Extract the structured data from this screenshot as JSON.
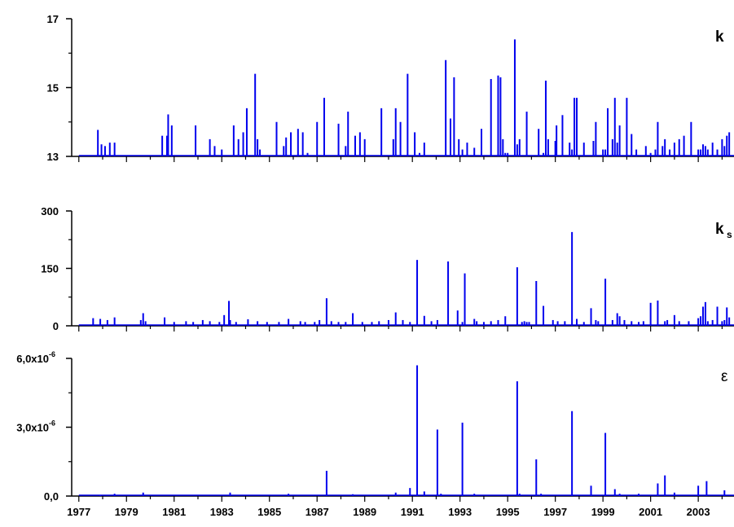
{
  "colors": {
    "series": "#0000ee",
    "axis": "#000000"
  },
  "chart_data": [
    {
      "type": "line",
      "panel_label": "k",
      "ylim": [
        13,
        17
      ],
      "yticks": [
        13,
        15,
        17
      ],
      "ytick_labels": [
        "13",
        "15",
        "17"
      ],
      "xlim": [
        1976.7,
        2004.5
      ],
      "grid": false,
      "series": [
        {
          "x": [
            1977.8,
            1977.95,
            1978.1,
            1978.3,
            1978.5,
            1980.5,
            1980.7,
            1980.75,
            1980.9,
            1981.9,
            1982.5,
            1982.7,
            1983.0,
            1983.5,
            1983.7,
            1983.9,
            1984.05,
            1984.4,
            1984.5,
            1984.6,
            1985.3,
            1985.6,
            1985.7,
            1985.9,
            1986.2,
            1986.4,
            1986.6,
            1987.0,
            1987.3,
            1987.9,
            1988.2,
            1988.3,
            1988.6,
            1988.8,
            1989.0,
            1989.7,
            1990.2,
            1990.3,
            1990.5,
            1990.8,
            1991.1,
            1991.3,
            1991.5,
            1992.4,
            1992.6,
            1992.75,
            1992.95,
            1993.1,
            1993.3,
            1993.6,
            1993.9,
            1994.3,
            1994.6,
            1994.7,
            1994.8,
            1994.9,
            1995.0,
            1995.3,
            1995.4,
            1995.5,
            1995.8,
            1996.3,
            1996.5,
            1996.6,
            1996.7,
            1997.0,
            1997.05,
            1997.3,
            1997.6,
            1997.7,
            1997.8,
            1997.9,
            1998.2,
            1998.6,
            1998.7,
            1999.0,
            1999.1,
            1999.2,
            1999.4,
            1999.5,
            1999.6,
            1999.7,
            2000.0,
            2000.2,
            2000.4,
            2000.8,
            2001.0,
            2001.2,
            2001.3,
            2001.5,
            2001.6,
            2001.8,
            2002.0,
            2002.2,
            2002.4,
            2002.7,
            2003.0,
            2003.1,
            2003.2,
            2003.3,
            2003.4,
            2003.6,
            2003.8,
            2004.0,
            2004.1,
            2004.2,
            2004.3
          ],
          "values": [
            13.77,
            13.35,
            13.3,
            13.4,
            13.4,
            13.6,
            13.6,
            14.22,
            13.9,
            13.9,
            13.5,
            13.3,
            13.2,
            13.9,
            13.5,
            13.7,
            14.4,
            15.4,
            13.5,
            13.2,
            14.0,
            13.3,
            13.55,
            13.7,
            13.8,
            13.7,
            13.1,
            14.0,
            14.7,
            13.95,
            13.3,
            14.3,
            13.6,
            13.7,
            13.5,
            14.4,
            13.5,
            14.4,
            14.0,
            15.4,
            13.7,
            13.1,
            13.4,
            15.8,
            14.1,
            15.3,
            13.5,
            13.2,
            13.4,
            13.25,
            13.8,
            15.25,
            15.35,
            15.3,
            13.5,
            13.1,
            13.1,
            16.4,
            13.35,
            13.5,
            14.3,
            13.8,
            13.1,
            15.2,
            13.5,
            13.45,
            13.9,
            14.2,
            13.4,
            13.2,
            14.7,
            14.7,
            13.4,
            13.45,
            14.0,
            13.2,
            13.2,
            14.4,
            13.5,
            14.7,
            13.4,
            13.9,
            14.7,
            13.65,
            13.2,
            13.3,
            13.1,
            13.2,
            14.0,
            13.3,
            13.5,
            13.2,
            13.4,
            13.5,
            13.6,
            14.0,
            13.2,
            13.2,
            13.35,
            13.3,
            13.2,
            13.4,
            13.2,
            13.5,
            13.3,
            13.6,
            13.7
          ]
        }
      ]
    },
    {
      "type": "line",
      "panel_label": "k",
      "panel_label_sub": "s",
      "ylim": [
        0,
        300
      ],
      "yticks": [
        0,
        150,
        300
      ],
      "ytick_labels": [
        "0",
        "150",
        "300"
      ],
      "xlim": [
        1976.7,
        2004.5
      ],
      "grid": false,
      "series": [
        {
          "x": [
            1977.6,
            1977.9,
            1978.2,
            1978.5,
            1979.6,
            1979.7,
            1979.8,
            1980.6,
            1981.0,
            1981.5,
            1981.8,
            1982.2,
            1982.5,
            1982.9,
            1983.1,
            1983.3,
            1983.35,
            1983.6,
            1984.1,
            1984.5,
            1984.9,
            1985.4,
            1985.8,
            1986.3,
            1986.5,
            1986.9,
            1987.1,
            1987.4,
            1987.6,
            1987.9,
            1988.2,
            1988.5,
            1988.9,
            1989.3,
            1989.6,
            1990.0,
            1990.3,
            1990.6,
            1990.9,
            1991.2,
            1991.5,
            1991.8,
            1992.05,
            1992.5,
            1992.9,
            1993.1,
            1993.2,
            1993.6,
            1993.7,
            1994.0,
            1994.3,
            1994.6,
            1994.9,
            1995.4,
            1995.6,
            1995.7,
            1995.8,
            1995.9,
            1996.2,
            1996.5,
            1996.9,
            1997.1,
            1997.4,
            1997.7,
            1997.9,
            1998.2,
            1998.5,
            1998.7,
            1998.8,
            1999.1,
            1999.4,
            1999.6,
            1999.7,
            1999.9,
            2000.2,
            2000.5,
            2000.7,
            2001.0,
            2001.3,
            2001.6,
            2001.7,
            2002.0,
            2002.2,
            2002.6,
            2003.0,
            2003.1,
            2003.2,
            2003.3,
            2003.4,
            2003.6,
            2003.8,
            2004.0,
            2004.1,
            2004.2,
            2004.3
          ],
          "values": [
            20,
            18,
            15,
            22,
            15,
            33,
            12,
            22,
            10,
            12,
            10,
            15,
            12,
            10,
            28,
            65,
            15,
            10,
            17,
            12,
            10,
            10,
            18,
            12,
            10,
            10,
            15,
            72,
            12,
            10,
            10,
            33,
            10,
            10,
            12,
            15,
            35,
            15,
            10,
            172,
            26,
            12,
            15,
            168,
            40,
            10,
            137,
            18,
            12,
            10,
            12,
            15,
            25,
            153,
            10,
            12,
            10,
            10,
            117,
            52,
            15,
            12,
            12,
            245,
            18,
            10,
            46,
            15,
            12,
            123,
            15,
            33,
            25,
            15,
            12,
            10,
            12,
            60,
            66,
            12,
            15,
            28,
            12,
            12,
            20,
            25,
            50,
            62,
            12,
            15,
            50,
            12,
            15,
            48,
            22
          ]
        }
      ]
    },
    {
      "type": "line",
      "panel_label": "ε",
      "ylim": [
        0,
        6e-06
      ],
      "yticks": [
        0,
        3e-06,
        6e-06
      ],
      "ytick_labels": [
        "0,0",
        "3,0x10",
        "6,0x10"
      ],
      "ytick_superscripts": [
        "",
        "-6",
        "-6"
      ],
      "xlim": [
        1976.7,
        2004.5
      ],
      "grid": false,
      "series": [
        {
          "x": [
            1977.9,
            1978.5,
            1979.7,
            1983.35,
            1985.8,
            1987.4,
            1988.5,
            1990.3,
            1990.9,
            1991.2,
            1991.5,
            1992.05,
            1992.2,
            1993.1,
            1993.6,
            1995.4,
            1995.5,
            1996.2,
            1996.4,
            1997.7,
            1998.5,
            1999.1,
            1999.5,
            1999.7,
            2000.5,
            2001.3,
            2001.6,
            2002.0,
            2003.0,
            2003.35,
            2004.1
          ],
          "values": [
            3e-08,
            1e-07,
            1.5e-07,
            1.5e-07,
            1e-07,
            1.1e-06,
            8e-08,
            1.5e-07,
            3.5e-07,
            5.7e-06,
            2e-07,
            2.9e-06,
            1e-07,
            3.2e-06,
            1e-07,
            5e-06,
            1e-07,
            1.6e-06,
            1e-07,
            3.7e-06,
            4.5e-07,
            2.75e-06,
            3e-07,
            1e-07,
            1e-07,
            5.5e-07,
            9e-07,
            1.5e-07,
            4.5e-07,
            6.5e-07,
            2.5e-07
          ]
        }
      ]
    }
  ],
  "x_axis": {
    "tick_labels": [
      "1977",
      "1979",
      "1981",
      "1983",
      "1985",
      "1987",
      "1989",
      "1991",
      "1993",
      "1995",
      "1997",
      "1999",
      "2001",
      "2003"
    ],
    "tick_values": [
      1977,
      1979,
      1981,
      1983,
      1985,
      1987,
      1989,
      1991,
      1993,
      1995,
      1997,
      1999,
      2001,
      2003
    ]
  }
}
